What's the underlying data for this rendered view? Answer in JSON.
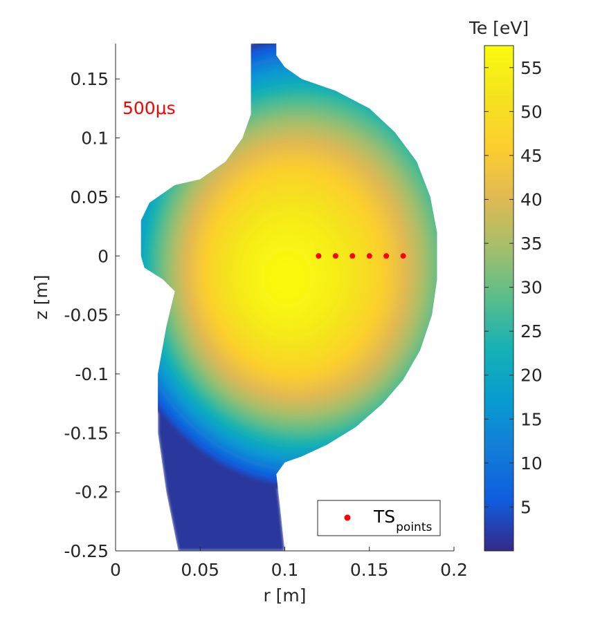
{
  "chart_data": {
    "type": "heatmap",
    "title": "",
    "xlabel": "r [m]",
    "ylabel": "z [m]",
    "xlim": [
      0,
      0.2
    ],
    "ylim": [
      -0.25,
      0.18
    ],
    "x_ticks": [
      0,
      0.05,
      0.1,
      0.15,
      0.2
    ],
    "x_tick_labels": [
      "0",
      "0.05",
      "0.1",
      "0.15",
      "0.2"
    ],
    "y_ticks": [
      0.15,
      0.1,
      0.05,
      0,
      -0.05,
      -0.1,
      -0.15,
      -0.2,
      -0.25
    ],
    "y_tick_labels": [
      "0.15",
      "0.1",
      "0.05",
      "0",
      "-0.05",
      "-0.1",
      "-0.15",
      "-0.2",
      "-0.25"
    ],
    "annotation": "500μs",
    "annotation_color": "#ff0000",
    "colorbar": {
      "title": "Te [eV]",
      "range": [
        0,
        57.5
      ],
      "ticks": [
        5,
        10,
        15,
        20,
        25,
        30,
        35,
        40,
        45,
        50,
        55
      ],
      "tick_labels": [
        "5",
        "10",
        "15",
        "20",
        "25",
        "30",
        "35",
        "40",
        "45",
        "50",
        "55"
      ],
      "colormap": "parula"
    },
    "temperature_peak": {
      "r": 0.1,
      "z": -0.02,
      "te": 57
    },
    "series": [
      {
        "name": "TS_points",
        "legend_main": "TS",
        "legend_sub": "points",
        "color": "#ff0000",
        "x": [
          0.12,
          0.13,
          0.14,
          0.15,
          0.16,
          0.17
        ],
        "y": [
          0,
          0,
          0,
          0,
          0,
          0
        ]
      }
    ],
    "legend_position": "bottom-right",
    "boundary_points": [
      [
        0.08,
        0.18
      ],
      [
        0.095,
        0.18
      ],
      [
        0.095,
        0.17
      ],
      [
        0.1,
        0.16
      ],
      [
        0.11,
        0.15
      ],
      [
        0.13,
        0.14
      ],
      [
        0.15,
        0.125
      ],
      [
        0.165,
        0.105
      ],
      [
        0.178,
        0.08
      ],
      [
        0.186,
        0.05
      ],
      [
        0.19,
        0.02
      ],
      [
        0.19,
        -0.02
      ],
      [
        0.187,
        -0.05
      ],
      [
        0.18,
        -0.08
      ],
      [
        0.17,
        -0.105
      ],
      [
        0.158,
        -0.125
      ],
      [
        0.142,
        -0.145
      ],
      [
        0.125,
        -0.16
      ],
      [
        0.11,
        -0.17
      ],
      [
        0.1,
        -0.175
      ],
      [
        0.095,
        -0.185
      ],
      [
        0.097,
        -0.21
      ],
      [
        0.1,
        -0.25
      ],
      [
        0.037,
        -0.25
      ],
      [
        0.03,
        -0.2
      ],
      [
        0.025,
        -0.15
      ],
      [
        0.025,
        -0.1
      ],
      [
        0.03,
        -0.06
      ],
      [
        0.035,
        -0.03
      ],
      [
        0.028,
        -0.02
      ],
      [
        0.017,
        -0.01
      ],
      [
        0.015,
        0.0
      ],
      [
        0.015,
        0.03
      ],
      [
        0.02,
        0.045
      ],
      [
        0.035,
        0.06
      ],
      [
        0.05,
        0.065
      ],
      [
        0.065,
        0.08
      ],
      [
        0.075,
        0.1
      ],
      [
        0.08,
        0.12
      ],
      [
        0.08,
        0.18
      ]
    ]
  }
}
